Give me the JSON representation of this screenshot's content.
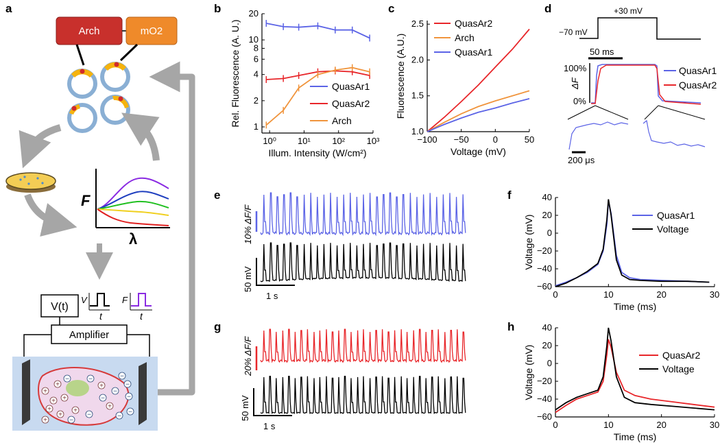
{
  "colors": {
    "quasar1": "#5b63e6",
    "quasar2": "#e8262a",
    "arch": "#f0943c",
    "black": "#000000"
  },
  "panel_labels": [
    "a",
    "b",
    "c",
    "d",
    "e",
    "f",
    "g",
    "h"
  ],
  "panel_a": {
    "box_arch": "Arch",
    "box_mo2": "mO2",
    "axis_f": "F",
    "axis_lambda": "λ",
    "vt_label": "V(t)",
    "amplifier_label": "Amplifier",
    "inset_v": "V",
    "inset_t1": "t",
    "inset_f": "F",
    "inset_t2": "t",
    "plus_sign": "+",
    "minus_sign": "−",
    "icons": [
      "protein-ring-icon",
      "petri-dish-icon",
      "cycle-arrow-icon",
      "cell-icon",
      "electrode-icon"
    ]
  },
  "panel_d": {
    "label_minus70": "−70 mV",
    "label_plus30": "+30 mV",
    "scale_ms": "50 ms",
    "y_top": "100%",
    "y_bottom": "0%",
    "y_label": "ΔF",
    "scale_us": "200 μs",
    "legend": [
      "QuasAr1",
      "QuasAr2"
    ]
  },
  "panel_e": {
    "scale_fluor": "10% ΔF/F",
    "scale_mv": "50 mV",
    "scale_time": "1 s"
  },
  "panel_g": {
    "scale_fluor": "20% ΔF/F",
    "scale_mv": "50 mV",
    "scale_time": "1 s"
  },
  "chart_data": [
    {
      "id": "b",
      "type": "line",
      "xlabel": "Illum. Intensity (W/cm²)",
      "ylabel": "Rel. Fluorescence (A. U.)",
      "xscale": "log",
      "yscale": "log",
      "xlim": [
        0.6,
        1000
      ],
      "ylim": [
        0.85,
        20
      ],
      "xticks": [
        1,
        10,
        100,
        1000
      ],
      "xtick_labels": [
        "10⁰",
        "10¹",
        "10²",
        "10³"
      ],
      "yticks": [
        1,
        2,
        4,
        6,
        8,
        10,
        20
      ],
      "ytick_labels": [
        "1",
        "2",
        "4",
        "6",
        "8",
        "10",
        "20"
      ],
      "legend_position": "center-right",
      "series": [
        {
          "name": "QuasAr1",
          "x": [
            0.8,
            2.5,
            7,
            25,
            80,
            250,
            800
          ],
          "y": [
            15.5,
            14.2,
            14.0,
            14.5,
            13.0,
            13.0,
            10.5
          ]
        },
        {
          "name": "QuasAr2",
          "x": [
            0.8,
            2.5,
            7,
            25,
            80,
            250,
            800
          ],
          "y": [
            3.5,
            3.6,
            3.9,
            4.3,
            4.4,
            4.3,
            3.9
          ]
        },
        {
          "name": "Arch",
          "x": [
            0.8,
            2.5,
            7,
            25,
            80,
            250,
            800
          ],
          "y": [
            1.05,
            1.55,
            2.8,
            4.0,
            4.5,
            4.8,
            4.3
          ]
        }
      ]
    },
    {
      "id": "c",
      "type": "line",
      "xlabel": "Voltage (mV)",
      "ylabel": "Fluorescence (A.U.)",
      "xlim": [
        -100,
        50
      ],
      "ylim": [
        1.0,
        2.55
      ],
      "xticks": [
        -100,
        -50,
        0,
        50
      ],
      "xtick_labels": [
        "−100",
        "−50",
        "0",
        "50"
      ],
      "yticks": [
        1.0,
        1.5,
        2.0,
        2.5
      ],
      "ytick_labels": [
        "1.0",
        "1.5",
        "2.0",
        "2.5"
      ],
      "legend_position": "top-left",
      "series": [
        {
          "name": "QuasAr2",
          "x": [
            -100,
            -75,
            -50,
            -25,
            0,
            25,
            50
          ],
          "y": [
            1.0,
            1.2,
            1.42,
            1.65,
            1.9,
            2.15,
            2.43
          ]
        },
        {
          "name": "Arch",
          "x": [
            -100,
            -75,
            -50,
            -25,
            0,
            25,
            50
          ],
          "y": [
            1.0,
            1.13,
            1.25,
            1.35,
            1.43,
            1.5,
            1.57
          ]
        },
        {
          "name": "QuasAr1",
          "x": [
            -100,
            -75,
            -50,
            -25,
            0,
            25,
            50
          ],
          "y": [
            1.0,
            1.1,
            1.19,
            1.27,
            1.33,
            1.4,
            1.46
          ]
        }
      ]
    },
    {
      "id": "f",
      "type": "line",
      "xlabel": "Time (ms)",
      "ylabel": "Voltage (mV)",
      "xlim": [
        0,
        30
      ],
      "ylim": [
        -60,
        40
      ],
      "xticks": [
        0,
        10,
        20,
        30
      ],
      "xtick_labels": [
        "0",
        "10",
        "20",
        "30"
      ],
      "yticks": [
        -60,
        -40,
        -20,
        0,
        20,
        40
      ],
      "ytick_labels": [
        "−60",
        "−40",
        "−20",
        "0",
        "20",
        "40"
      ],
      "legend_position": "top-right",
      "series": [
        {
          "name": "QuasAr1",
          "x": [
            0,
            2,
            4,
            6,
            8,
            9,
            9.7,
            10,
            10.5,
            11.5,
            12.5,
            14,
            16,
            20,
            25,
            29
          ],
          "y": [
            -59,
            -55,
            -50,
            -44,
            -35,
            -20,
            10,
            36,
            22,
            -25,
            -44,
            -50,
            -52,
            -53,
            -54,
            -55
          ]
        },
        {
          "name": "Voltage",
          "x": [
            0,
            2,
            4,
            6,
            8,
            9,
            9.7,
            10,
            10.5,
            11.5,
            12.5,
            14,
            16,
            20,
            25,
            29
          ],
          "y": [
            -60,
            -56,
            -50,
            -43,
            -34,
            -18,
            15,
            38,
            20,
            -30,
            -47,
            -52,
            -53,
            -54,
            -54,
            -55
          ]
        }
      ]
    },
    {
      "id": "h",
      "type": "line",
      "xlabel": "Time (ms)",
      "ylabel": "Voltage (mV)",
      "xlim": [
        0,
        30
      ],
      "ylim": [
        -60,
        40
      ],
      "xticks": [
        0,
        10,
        20,
        30
      ],
      "xtick_labels": [
        "0",
        "10",
        "20",
        "30"
      ],
      "yticks": [
        -60,
        -40,
        -20,
        0,
        20,
        40
      ],
      "ytick_labels": [
        "−60",
        "−40",
        "−20",
        "0",
        "20",
        "40"
      ],
      "legend_position": "top-right",
      "series": [
        {
          "name": "QuasAr2",
          "x": [
            0,
            2,
            4,
            6,
            8,
            9,
            9.7,
            10,
            10.5,
            11.5,
            13,
            15,
            18,
            22,
            26,
            30
          ],
          "y": [
            -55,
            -47,
            -40,
            -36,
            -32,
            -20,
            10,
            27,
            18,
            -10,
            -30,
            -36,
            -40,
            -43,
            -46,
            -49
          ]
        },
        {
          "name": "Voltage",
          "x": [
            0,
            2,
            4,
            6,
            8,
            9,
            9.7,
            10,
            10.5,
            11.5,
            13,
            15,
            18,
            22,
            26,
            30
          ],
          "y": [
            -52,
            -44,
            -38,
            -34,
            -30,
            -15,
            20,
            40,
            25,
            -15,
            -38,
            -44,
            -46,
            -48,
            -50,
            -52
          ]
        }
      ]
    }
  ]
}
